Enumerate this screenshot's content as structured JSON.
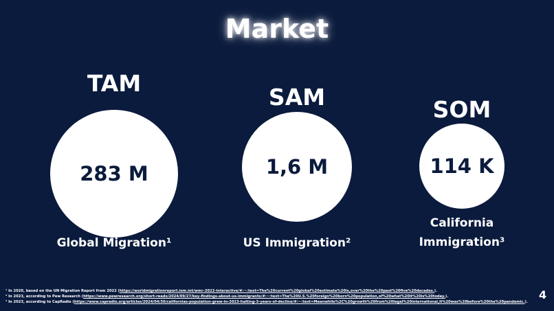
{
  "slide": {
    "title": "Market",
    "markets": [
      {
        "label": "TAM",
        "value": "283 M",
        "description": [
          "Global Migration¹"
        ]
      },
      {
        "label": "SAM",
        "value": "1,6 M",
        "description": [
          "US Immigration²"
        ]
      },
      {
        "label": "SOM",
        "value": "114 K",
        "description": [
          "California",
          "Immigration³"
        ]
      }
    ],
    "footnotes": [
      {
        "text": "¹ In 2020, based on the UN Migration Report from 2022 (",
        "link": "https://worldmigrationreport.iom.int/wmr-2022-interactive/#:~:text=The%20current%20global%20estimate%20is,over%20the%20past%20five%20decades.",
        "end": ")."
      },
      {
        "text": "² In 2023, according to Pew Research (",
        "link": "https://www.pewresearch.org/short-reads/2024/09/27/key-findings-about-us-immigrants/#:~:text=The%20U.S.%20foreign%20born%20population,of%20what%20it%20is%20today.",
        "end": ")."
      },
      {
        "text": "³ In 2023, according to CapRadio (",
        "link": "https://www.capradio.org/articles/2024/04/30/californias-population-grew-in-2023-halting-3-years-of-decline/#:~:text=Meanwhile%2C%20growth%20from%20legal%20international,it%20was%20before%20the%20pandemic.",
        "end": ")."
      }
    ],
    "page_number": "4"
  }
}
